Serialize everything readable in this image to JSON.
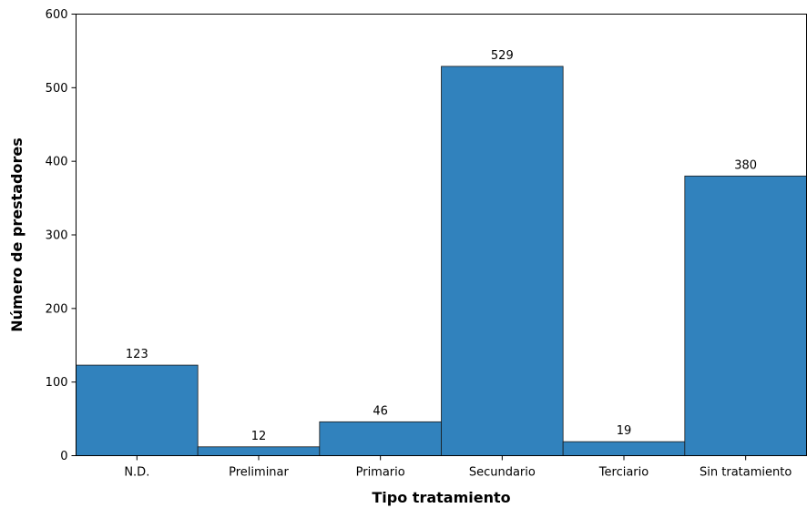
{
  "chart_data": {
    "type": "bar",
    "categories": [
      "N.D.",
      "Preliminar",
      "Primario",
      "Secundario",
      "Terciario",
      "Sin tratamiento"
    ],
    "values": [
      123,
      12,
      46,
      529,
      19,
      380
    ],
    "title": "",
    "xlabel": "Tipo tratamiento",
    "ylabel": "Número de prestadores",
    "ylim": [
      0,
      600
    ],
    "yticks": [
      0,
      100,
      200,
      300,
      400,
      500,
      600
    ],
    "grid": false,
    "bar_color": "#3182bd",
    "bar_edge_color": "#1a1a1a"
  }
}
